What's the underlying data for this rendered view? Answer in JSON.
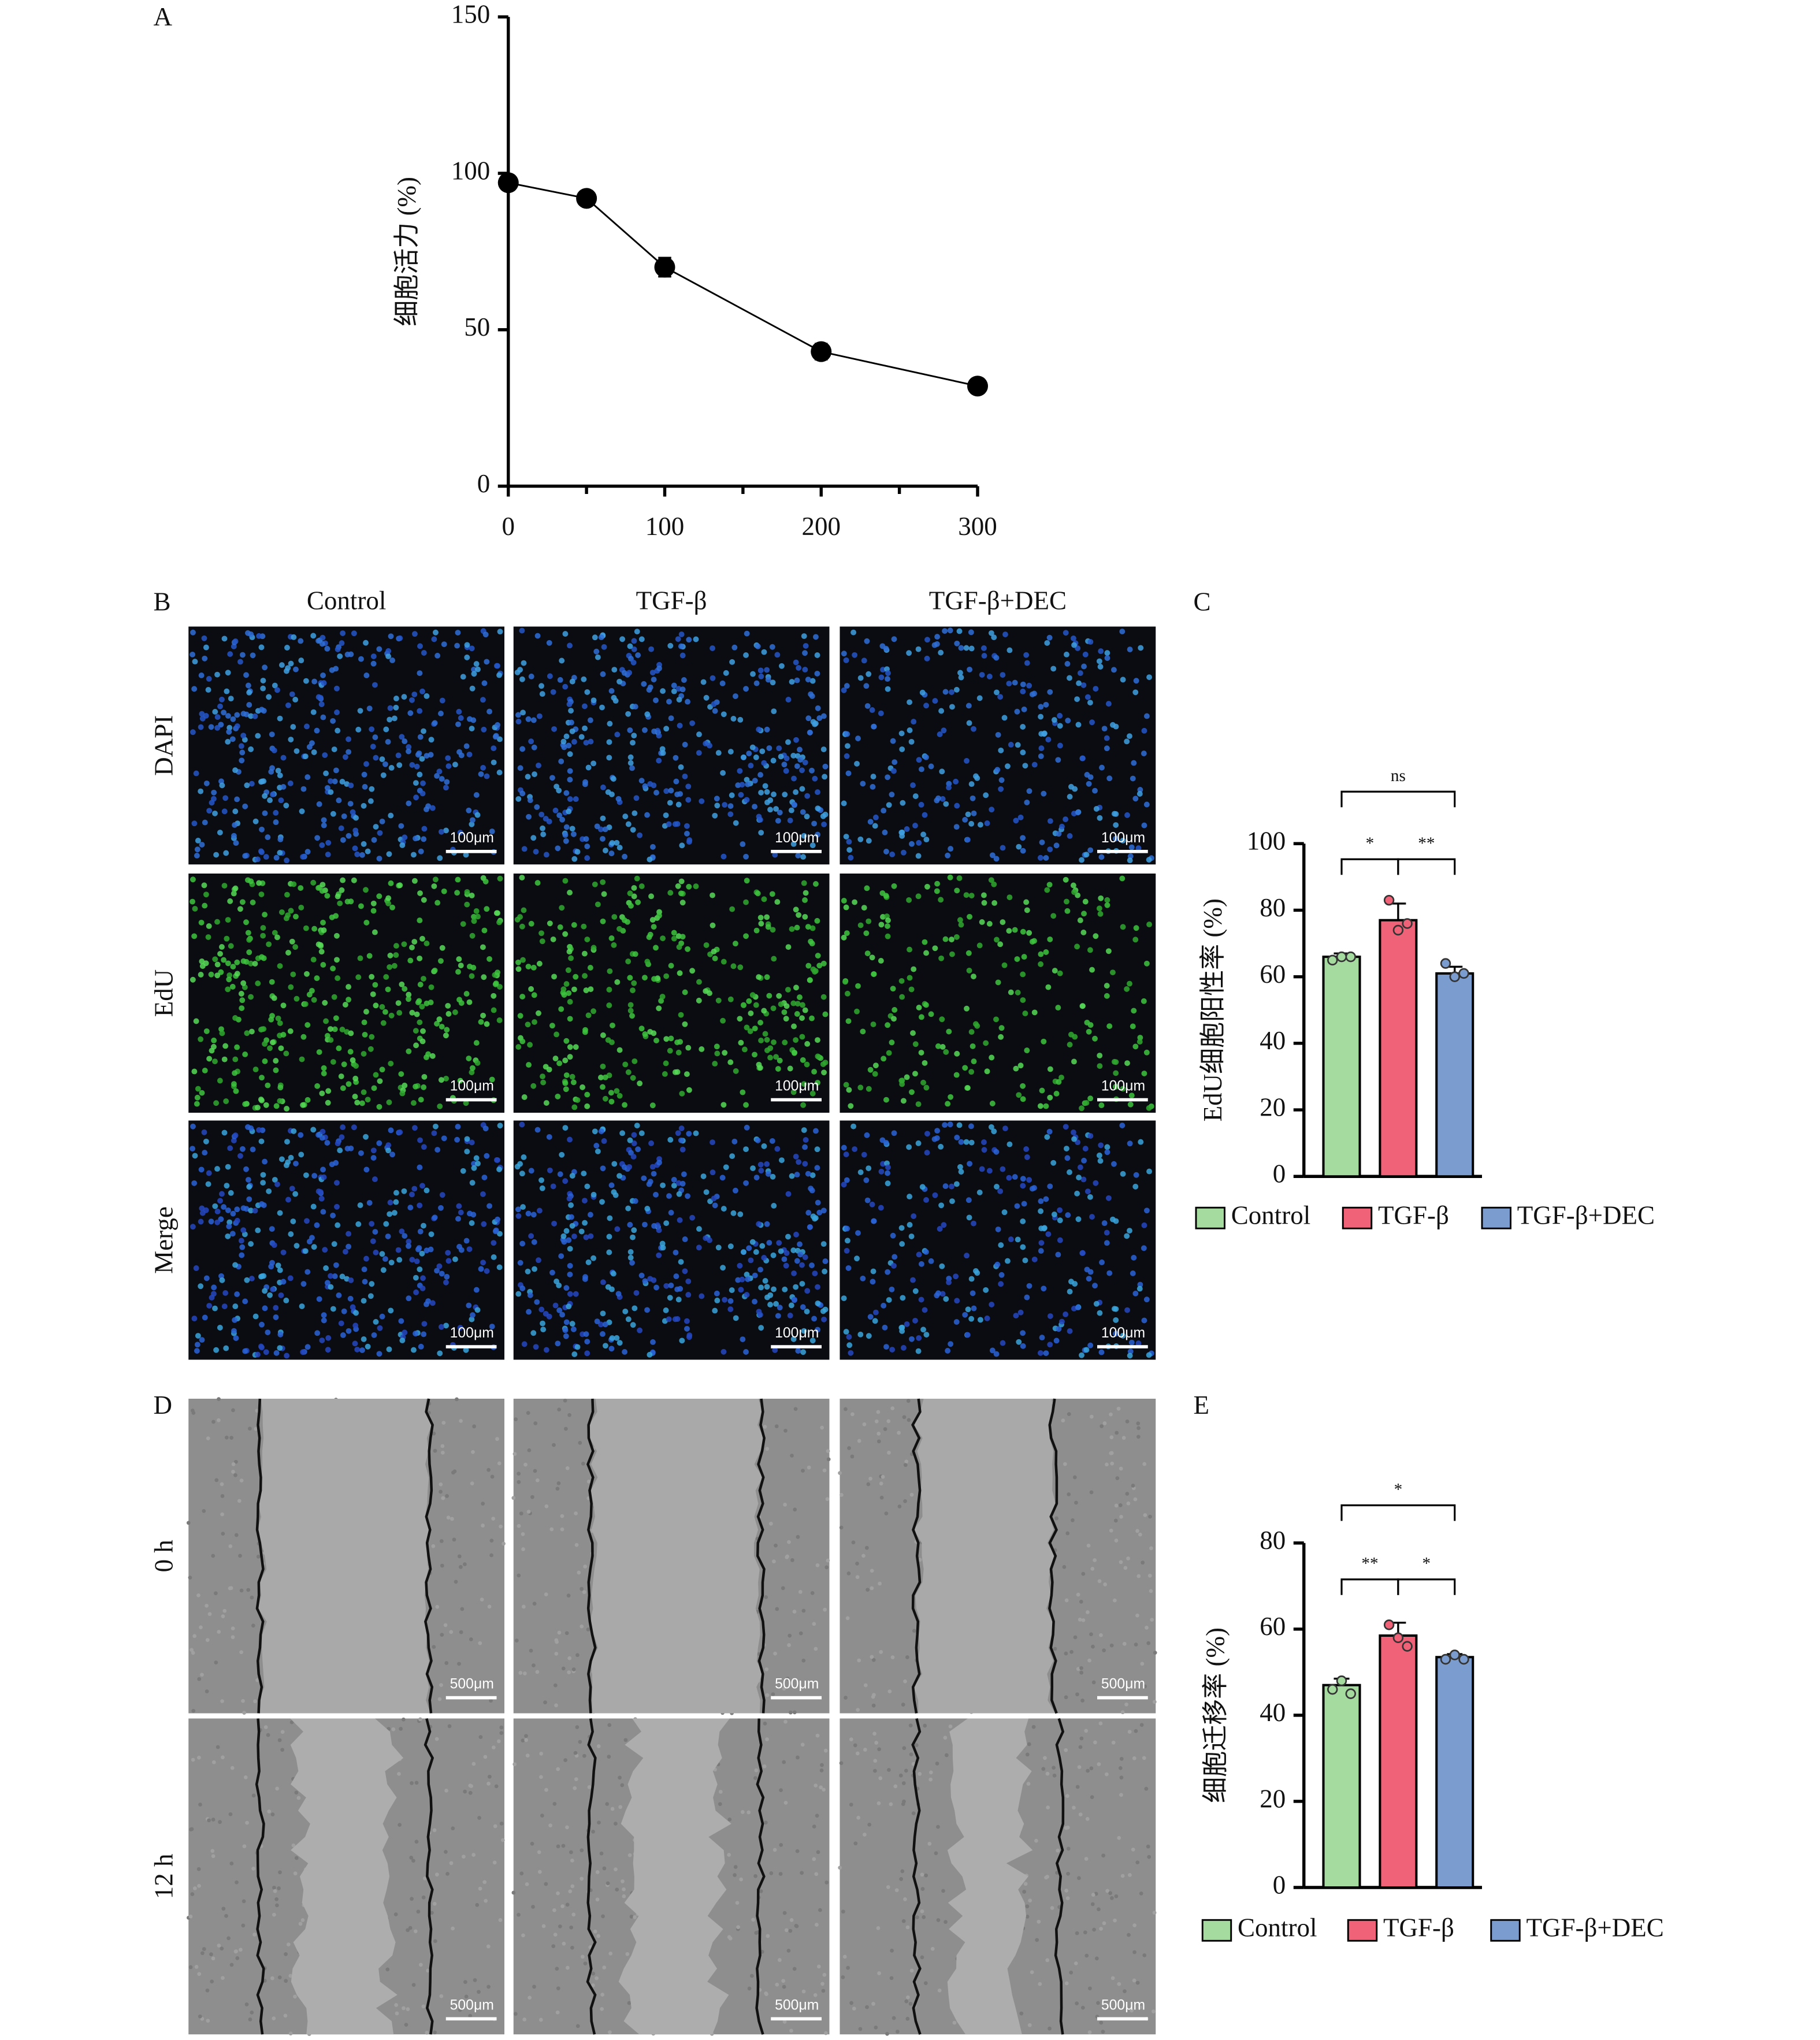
{
  "panel_labels": [
    "A",
    "B",
    "C",
    "D",
    "E"
  ],
  "microscopy_B": {
    "column_labels": [
      "Control",
      "TGF-β",
      "TGF-β+DEC"
    ],
    "row_labels": [
      "DAPI",
      "EdU",
      "Merge"
    ],
    "scale_bar": "100μm"
  },
  "microscopy_D": {
    "row_labels": [
      "0 h",
      "12 h"
    ],
    "scale_bar": "500μm"
  },
  "chart_data": [
    {
      "type": "line",
      "y_label": "细胞活力 (%)",
      "x": [
        0,
        50,
        100,
        200,
        300
      ],
      "values": [
        97,
        92,
        70,
        43,
        32
      ],
      "errors": [
        1,
        1,
        3,
        2.5,
        1
      ],
      "color": "#000000",
      "xlim": [
        0,
        300
      ],
      "xticks": [
        0,
        100,
        200,
        300
      ],
      "xminorticks": [
        50,
        150,
        250
      ],
      "ylim": [
        0,
        150
      ],
      "yticks": [
        0,
        50,
        100,
        150
      ]
    },
    {
      "type": "bar",
      "y_label": "EdU细胞阳性率 (%)",
      "categories": [
        "Control",
        "TGF-β",
        "TGF-β+DEC"
      ],
      "values": [
        66,
        77,
        61
      ],
      "errors": [
        1,
        5,
        2
      ],
      "points": [
        [
          65,
          66,
          66
        ],
        [
          83,
          74,
          76
        ],
        [
          64,
          60,
          61
        ]
      ],
      "colors": [
        "#a6dba0",
        "#f06277",
        "#7b9ccf"
      ],
      "ylim": [
        0,
        100
      ],
      "yticks": [
        0,
        20,
        40,
        60,
        80,
        100
      ],
      "annotations": [
        "ns",
        "*",
        "**"
      ]
    },
    {
      "type": "bar",
      "y_label": "细胞迁移率 (%)",
      "categories": [
        "Control",
        "TGF-β",
        "TGF-β+DEC"
      ],
      "values": [
        47,
        58.5,
        53.5
      ],
      "errors": [
        1.5,
        3,
        0.7
      ],
      "points": [
        [
          46,
          48,
          45
        ],
        [
          61,
          58,
          56
        ],
        [
          53,
          54,
          53
        ]
      ],
      "colors": [
        "#a6dba0",
        "#f06277",
        "#7b9ccf"
      ],
      "ylim": [
        0,
        80
      ],
      "yticks": [
        0,
        20,
        40,
        60,
        80
      ],
      "annotations": [
        "*",
        "**",
        "*"
      ]
    }
  ]
}
